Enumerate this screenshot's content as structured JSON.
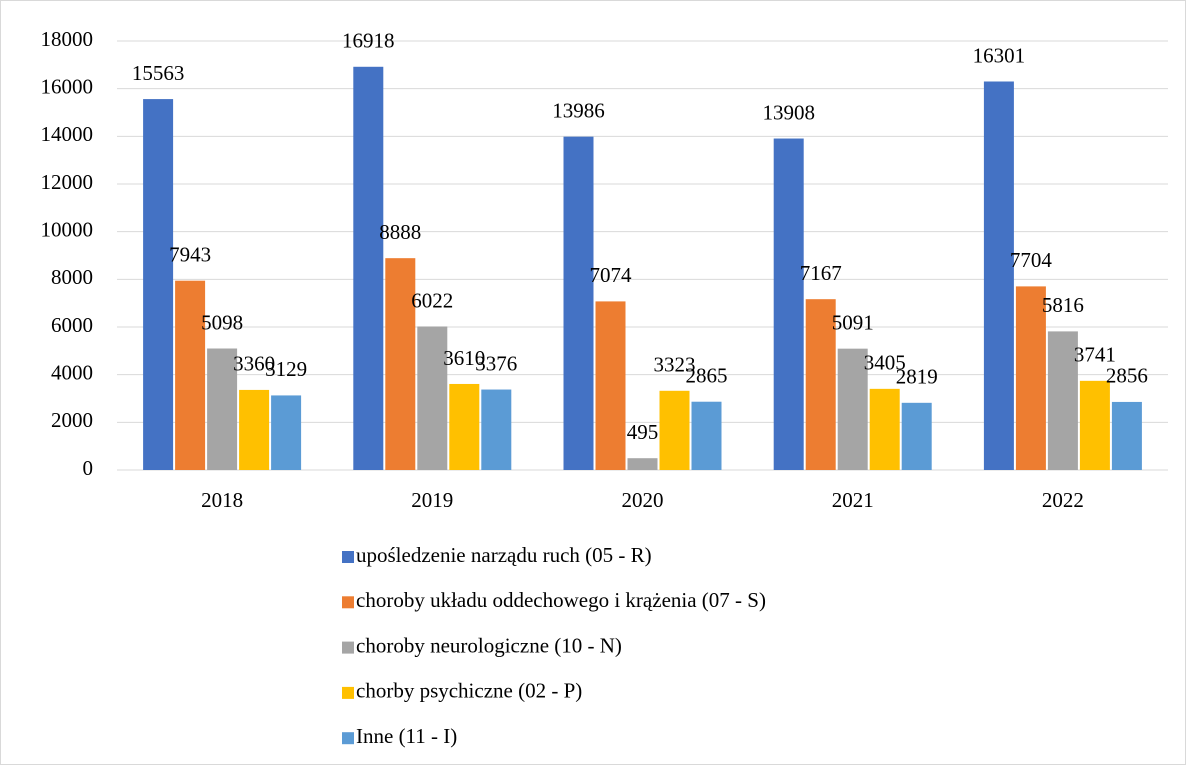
{
  "chart_data": {
    "type": "bar",
    "categories": [
      "2018",
      "2019",
      "2020",
      "2021",
      "2022"
    ],
    "series": [
      {
        "name": "upośledzenie narządu ruch (05 - R)",
        "color": "#4472c4",
        "values": [
          15563,
          16918,
          13986,
          13908,
          16301
        ]
      },
      {
        "name": "choroby układu oddechowego i krążenia (07 - S)",
        "color": "#ed7d31",
        "values": [
          7943,
          8888,
          7074,
          7167,
          7704
        ]
      },
      {
        "name": "choroby neurologiczne (10 - N)",
        "color": "#a5a5a5",
        "values": [
          5098,
          6022,
          495,
          5091,
          5816
        ]
      },
      {
        "name": "chorby psychiczne (02 - P)",
        "color": "#ffc000",
        "values": [
          3360,
          3610,
          3323,
          3405,
          3741
        ]
      },
      {
        "name": "Inne (11 - I)",
        "color": "#5b9bd5",
        "values": [
          3129,
          3376,
          2865,
          2819,
          2856
        ]
      }
    ],
    "ylim": [
      0,
      18000
    ],
    "yticks": [
      0,
      2000,
      4000,
      6000,
      8000,
      10000,
      12000,
      14000,
      16000,
      18000
    ],
    "grid": true,
    "legend": "bottom"
  }
}
